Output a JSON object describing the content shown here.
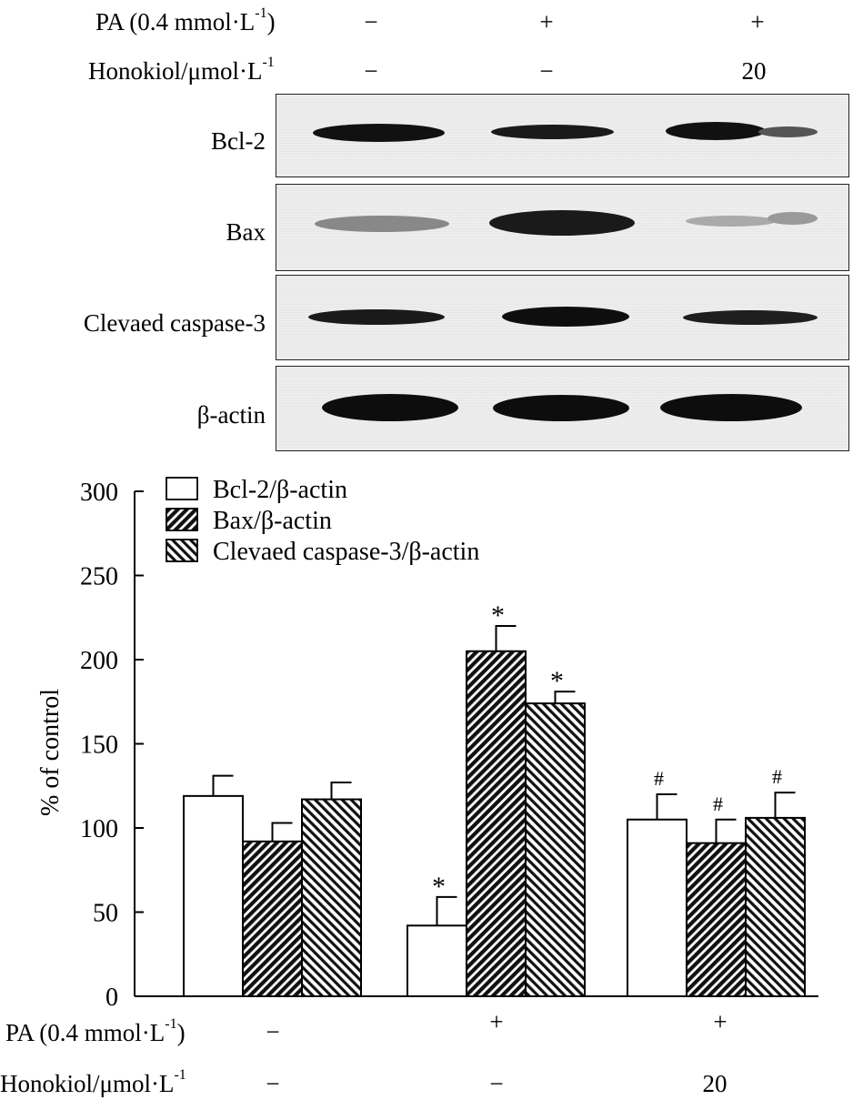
{
  "blot": {
    "row_labels": {
      "pa_prefix": "PA (0.4 mmol·L",
      "pa_sup": "-1",
      "pa_suffix": ")",
      "honokiol_prefix": "Honokiol/μmol·L",
      "honokiol_sup": "-1"
    },
    "pa_values": [
      "−",
      "+",
      "+"
    ],
    "honokiol_values": [
      "−",
      "−",
      "20"
    ],
    "rows": [
      {
        "label": "Bcl-2",
        "intensity": [
          1.0,
          0.8,
          0.9
        ]
      },
      {
        "label": "Bax",
        "intensity": [
          0.35,
          0.95,
          0.25
        ]
      },
      {
        "label": "Clevaed caspase-3",
        "intensity": [
          0.85,
          1.0,
          0.8
        ]
      },
      {
        "label": "β-actin",
        "intensity": [
          1.0,
          1.0,
          1.0
        ]
      }
    ]
  },
  "chart_data": {
    "type": "bar",
    "ylabel": "% of control",
    "ylim": [
      0,
      300
    ],
    "yticks": [
      0,
      50,
      100,
      150,
      200,
      250,
      300
    ],
    "legend_position": "top-left",
    "groups": [
      {
        "pa": "−",
        "honokiol": "−"
      },
      {
        "pa": "+",
        "honokiol": "−"
      },
      {
        "pa": "+",
        "honokiol": "20"
      }
    ],
    "series": [
      {
        "name": "Bcl-2/β-actin",
        "pattern": "none",
        "values": [
          119,
          42,
          105
        ],
        "errors": [
          12,
          17,
          15
        ],
        "markers": [
          "",
          "*",
          "#"
        ]
      },
      {
        "name": "Bax/β-actin",
        "pattern": "diag-right",
        "values": [
          92,
          205,
          91
        ],
        "errors": [
          11,
          15,
          14
        ],
        "markers": [
          "",
          "*",
          "#"
        ]
      },
      {
        "name": "Clevaed caspase-3/β-actin",
        "pattern": "diag-left",
        "values": [
          117,
          174,
          106
        ],
        "errors": [
          10,
          7,
          15
        ],
        "markers": [
          "",
          "*",
          "#"
        ]
      }
    ],
    "x_rows": {
      "pa_prefix": "PA (0.4 mmol·L",
      "pa_sup": "-1",
      "pa_suffix": ")",
      "honokiol_prefix": "Honokiol/μmol·L",
      "honokiol_sup": "-1",
      "pa_values": [
        "−",
        "+",
        "+"
      ],
      "honokiol_values": [
        "−",
        "−",
        "20"
      ]
    }
  }
}
